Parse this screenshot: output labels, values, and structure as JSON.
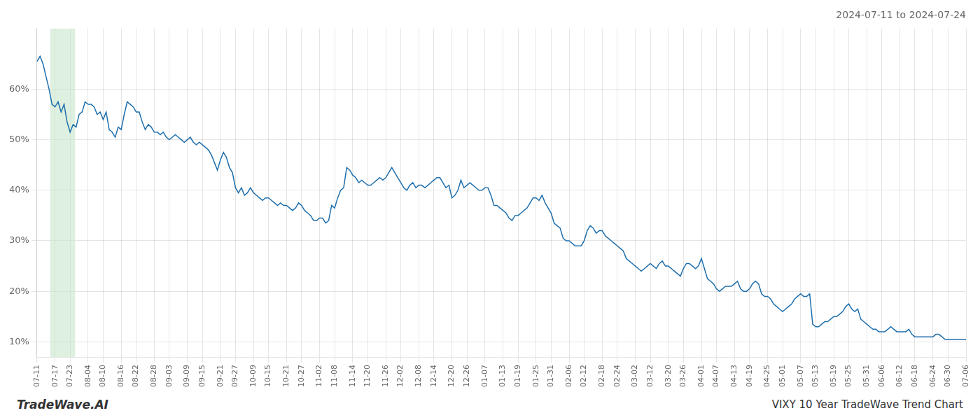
{
  "chart_data": {
    "type": "line",
    "title": "2024-07-11 to 2024-07-24",
    "annotations": [
      "TradeWave.AI",
      "VIXY 10 Year TradeWave Trend Chart"
    ],
    "color": "#1f6fad",
    "marker": "none",
    "grid": true,
    "highlight": {
      "start": "07-17",
      "end": "07-23",
      "color": "#c8e6c9"
    },
    "ylim": [
      7,
      72
    ],
    "yticks": [
      {
        "value": 10,
        "label": "10%"
      },
      {
        "value": 20,
        "label": "20%"
      },
      {
        "value": 30,
        "label": "30%"
      },
      {
        "value": 40,
        "label": "40%"
      },
      {
        "value": 50,
        "label": "50%"
      },
      {
        "value": 60,
        "label": "60%"
      }
    ],
    "categories": [
      "07-11",
      null,
      null,
      null,
      null,
      null,
      "07-17",
      null,
      null,
      null,
      null,
      "07-23",
      null,
      null,
      null,
      null,
      null,
      "08-04",
      null,
      null,
      null,
      null,
      "08-10",
      null,
      null,
      null,
      null,
      null,
      "08-16",
      null,
      null,
      null,
      null,
      "08-22",
      null,
      null,
      null,
      null,
      null,
      "08-28",
      null,
      null,
      null,
      null,
      "09-03",
      null,
      null,
      null,
      null,
      null,
      "09-09",
      null,
      null,
      null,
      null,
      "09-15",
      null,
      null,
      null,
      null,
      null,
      "09-21",
      null,
      null,
      null,
      null,
      "09-27",
      null,
      null,
      null,
      null,
      null,
      "10-09",
      null,
      null,
      null,
      null,
      "10-15",
      null,
      null,
      null,
      null,
      null,
      "10-21",
      null,
      null,
      null,
      null,
      "10-27",
      null,
      null,
      null,
      null,
      null,
      "11-02",
      null,
      null,
      null,
      null,
      "11-08",
      null,
      null,
      null,
      null,
      null,
      "11-14",
      null,
      null,
      null,
      null,
      "11-20",
      null,
      null,
      null,
      null,
      null,
      "11-26",
      null,
      null,
      null,
      null,
      "12-02",
      null,
      null,
      null,
      null,
      null,
      "12-08",
      null,
      null,
      null,
      null,
      "12-14",
      null,
      null,
      null,
      null,
      null,
      "12-20",
      null,
      null,
      null,
      null,
      "12-26",
      null,
      null,
      null,
      null,
      null,
      "01-07",
      null,
      null,
      null,
      null,
      null,
      "01-13",
      null,
      null,
      null,
      null,
      "01-19",
      null,
      null,
      null,
      null,
      null,
      "01-25",
      null,
      null,
      null,
      null,
      "01-31",
      null,
      null,
      null,
      null,
      null,
      "02-06",
      null,
      null,
      null,
      null,
      "02-12",
      null,
      null,
      null,
      null,
      null,
      "02-18",
      null,
      null,
      null,
      null,
      "02-24",
      null,
      null,
      null,
      null,
      null,
      "03-02",
      null,
      null,
      null,
      null,
      "03-12",
      null,
      null,
      null,
      null,
      null,
      "03-20",
      null,
      null,
      null,
      null,
      "03-26",
      null,
      null,
      null,
      null,
      null,
      "04-01",
      null,
      null,
      null,
      null,
      "04-07",
      null,
      null,
      null,
      null,
      null,
      "04-13",
      null,
      null,
      null,
      null,
      "04-19",
      null,
      null,
      null,
      null,
      null,
      "04-25",
      null,
      null,
      null,
      null,
      "05-01",
      null,
      null,
      null,
      null,
      null,
      "05-07",
      null,
      null,
      null,
      null,
      "05-13",
      null,
      null,
      null,
      null,
      null,
      "05-19",
      null,
      null,
      null,
      null,
      "05-25",
      null,
      null,
      null,
      null,
      null,
      "05-31",
      null,
      null,
      null,
      null,
      "06-06",
      null,
      null,
      null,
      null,
      null,
      "06-12",
      null,
      null,
      null,
      null,
      "06-18",
      null,
      null,
      null,
      null,
      null,
      "06-24",
      null,
      null,
      null,
      null,
      "06-30",
      null,
      null,
      null,
      null,
      null,
      "07-06"
    ],
    "values": [
      65.5,
      66.5,
      65.0,
      62.5,
      60.0,
      57.0,
      56.5,
      57.5,
      55.5,
      57.0,
      53.5,
      51.5,
      53.0,
      52.5,
      55.0,
      55.5,
      57.5,
      57.0,
      57.0,
      56.5,
      55.0,
      55.5,
      54.0,
      55.5,
      52.0,
      51.5,
      50.5,
      52.5,
      52.0,
      55.0,
      57.5,
      57.0,
      56.5,
      55.5,
      55.5,
      53.5,
      52.0,
      53.0,
      52.5,
      51.5,
      51.5,
      51.0,
      51.5,
      50.5,
      50.0,
      50.5,
      51.0,
      50.5,
      50.0,
      49.5,
      50.0,
      50.5,
      49.5,
      49.0,
      49.5,
      49.0,
      48.5,
      48.0,
      47.0,
      45.5,
      44.0,
      46.0,
      47.5,
      46.5,
      44.5,
      43.5,
      40.5,
      39.5,
      40.5,
      39.0,
      39.5,
      40.5,
      39.5,
      39.0,
      38.5,
      38.0,
      38.5,
      38.5,
      38.0,
      37.5,
      37.0,
      37.5,
      37.0,
      37.0,
      36.5,
      36.0,
      36.5,
      37.5,
      37.0,
      36.0,
      35.5,
      35.0,
      34.0,
      34.0,
      34.5,
      34.5,
      33.5,
      34.0,
      37.0,
      36.5,
      38.5,
      40.0,
      40.5,
      44.5,
      44.0,
      43.0,
      42.5,
      41.5,
      42.0,
      41.5,
      41.0,
      41.0,
      41.5,
      42.0,
      42.5,
      42.0,
      42.5,
      43.5,
      44.5,
      43.5,
      42.5,
      41.5,
      40.5,
      40.0,
      41.0,
      41.5,
      40.5,
      41.0,
      41.0,
      40.5,
      41.0,
      41.5,
      42.0,
      42.5,
      42.5,
      41.5,
      40.5,
      41.0,
      38.5,
      39.0,
      40.0,
      42.0,
      40.5,
      41.0,
      41.5,
      41.0,
      40.5,
      40.0,
      40.0,
      40.5,
      40.5,
      39.0,
      37.0,
      37.0,
      36.5,
      36.0,
      35.5,
      34.5,
      34.0,
      35.0,
      35.0,
      35.5,
      36.0,
      36.5,
      37.5,
      38.5,
      38.5,
      38.0,
      39.0,
      37.5,
      36.5,
      35.5,
      33.5,
      33.0,
      32.5,
      30.5,
      30.0,
      30.0,
      29.5,
      29.0,
      29.0,
      29.0,
      30.0,
      32.0,
      33.0,
      32.5,
      31.5,
      32.0,
      32.0,
      31.0,
      30.5,
      30.0,
      29.5,
      29.0,
      28.5,
      28.0,
      26.5,
      26.0,
      25.5,
      25.0,
      24.5,
      24.0,
      24.5,
      25.0,
      25.5,
      25.0,
      24.5,
      25.5,
      26.0,
      25.0,
      25.0,
      24.5,
      24.0,
      23.5,
      23.0,
      24.5,
      25.5,
      25.5,
      25.0,
      24.5,
      25.0,
      26.5,
      24.5,
      22.5,
      22.0,
      21.5,
      20.5,
      20.0,
      20.5,
      21.0,
      21.0,
      21.0,
      21.5,
      22.0,
      20.5,
      20.0,
      20.0,
      20.5,
      21.5,
      22.0,
      21.5,
      19.5,
      19.0,
      19.0,
      18.5,
      17.5,
      17.0,
      16.5,
      16.0,
      16.5,
      17.0,
      17.5,
      18.5,
      19.0,
      19.5,
      19.0,
      19.0,
      19.5,
      13.5,
      13.0,
      13.0,
      13.5,
      14.0,
      14.0,
      14.5,
      15.0,
      15.0,
      15.5,
      16.0,
      17.0,
      17.5,
      16.5,
      16.0,
      16.5,
      14.5,
      14.0,
      13.5,
      13.0,
      12.5,
      12.5,
      12.0,
      12.0,
      12.0,
      12.5,
      13.0,
      12.5,
      12.0,
      12.0,
      12.0,
      12.0,
      12.5,
      11.5,
      11.0,
      11.0,
      11.0,
      11.0,
      11.0,
      11.0,
      11.0,
      11.5,
      11.5,
      11.0,
      10.5,
      10.5,
      10.5,
      10.5,
      10.5,
      10.5,
      10.5,
      10.5
    ]
  }
}
